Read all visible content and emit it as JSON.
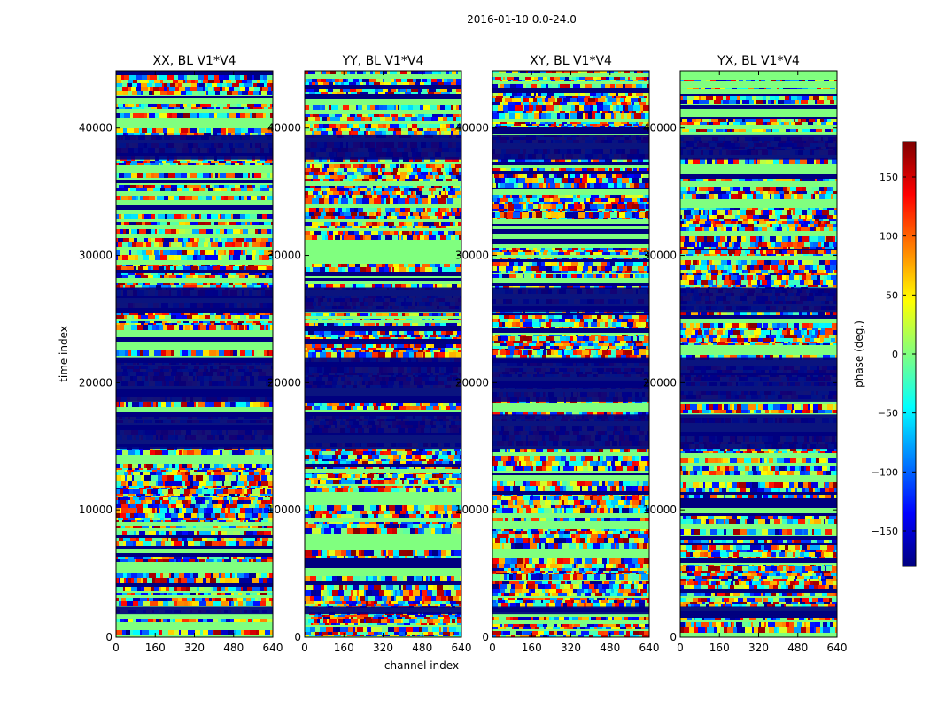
{
  "suptitle": "2016-01-10 0.0-24.0",
  "chart_data": {
    "type": "heatmap",
    "ylabel": "time index",
    "xlabel": "channel index",
    "xlim": [
      0,
      640
    ],
    "ylim": [
      0,
      44500
    ],
    "xticks": [
      0,
      160,
      320,
      480,
      640
    ],
    "yticks": [
      0,
      10000,
      20000,
      30000,
      40000
    ],
    "xtick_labels": [
      "0",
      "160",
      "320",
      "480",
      "640"
    ],
    "ytick_labels": [
      "0",
      "10000",
      "20000",
      "30000",
      "40000"
    ],
    "colormap": "jet",
    "panels": [
      {
        "title": "XX, BL V1*V4",
        "pol": "XX"
      },
      {
        "title": "YY, BL V1*V4",
        "pol": "YY"
      },
      {
        "title": "XY, BL V1*V4",
        "pol": "XY"
      },
      {
        "title": "YX, BL V1*V4",
        "pol": "YX"
      }
    ],
    "flagged_time_ranges": [
      [
        37500,
        39500
      ],
      [
        25500,
        27500
      ],
      [
        14800,
        17500
      ],
      [
        18500,
        22000
      ],
      [
        1800,
        2400
      ]
    ],
    "colorbar": {
      "label": "phase (deg.)",
      "range": [
        -180,
        180
      ],
      "ticks": [
        -150,
        -100,
        -50,
        0,
        50,
        100,
        150
      ],
      "tick_labels": [
        "−150",
        "−100",
        "−50",
        "0",
        "50",
        "100",
        "150"
      ]
    }
  }
}
